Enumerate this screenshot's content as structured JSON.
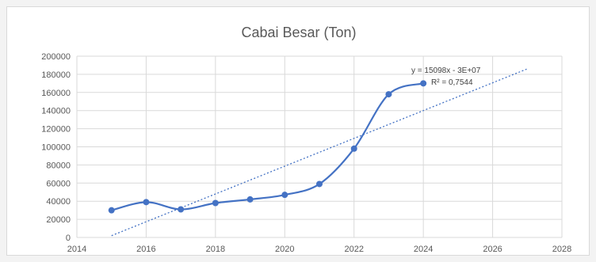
{
  "chart_data": {
    "type": "scatter",
    "title": "Cabai Besar (Ton)",
    "xlabel": "",
    "ylabel": "",
    "xlim": [
      2014,
      2028
    ],
    "ylim": [
      0,
      200000
    ],
    "x_ticks": [
      "2014",
      "2016",
      "2018",
      "2020",
      "2022",
      "2024",
      "2026",
      "2028"
    ],
    "y_ticks": [
      "0",
      "20000",
      "40000",
      "60000",
      "80000",
      "100000",
      "120000",
      "140000",
      "160000",
      "180000",
      "200000"
    ],
    "grid": true,
    "legend": "none",
    "series": [
      {
        "color": "#4472c4",
        "smooth": true,
        "marker": "circle",
        "x": [
          2015,
          2016,
          2017,
          2018,
          2019,
          2020,
          2021,
          2022,
          2023,
          2024
        ],
        "y": [
          30000,
          39000,
          31000,
          38000,
          42000,
          47000,
          59000,
          98000,
          158000,
          170000
        ]
      }
    ],
    "trendline": {
      "type": "linear",
      "color": "#4472c4",
      "style": "dotted",
      "x": [
        2015,
        2027
      ],
      "y": [
        2000,
        186000
      ],
      "equation": "y = 15098x - 3E+07",
      "r_squared": "R² = 0,7544"
    }
  }
}
